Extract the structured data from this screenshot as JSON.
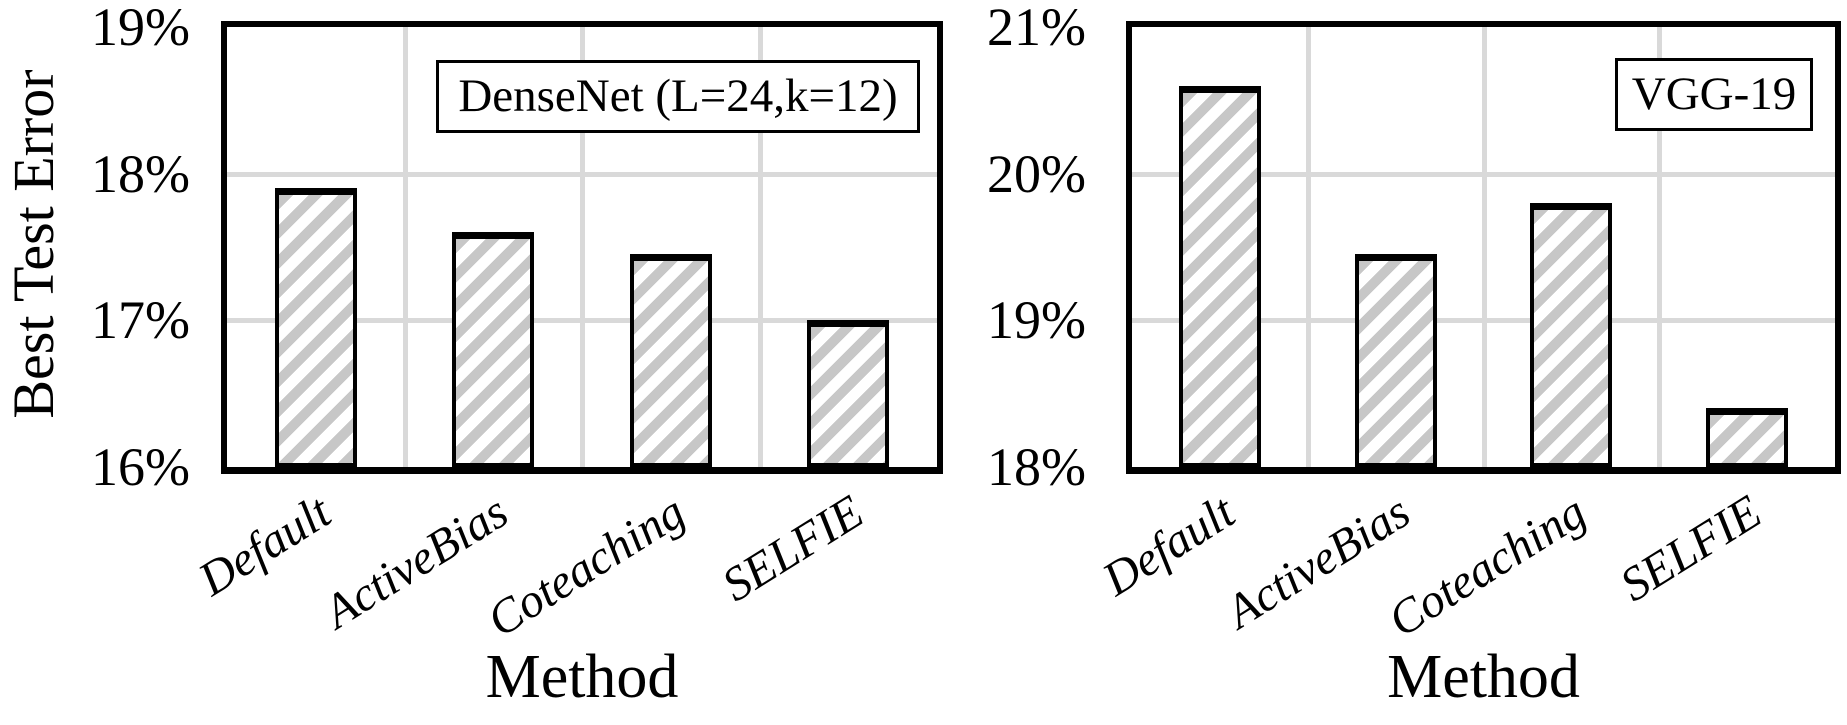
{
  "colors": {
    "background": "#ffffff",
    "grid": "#d9d9d9",
    "bar_fill": "#ffffff",
    "bar_hatch": "#c7c7c7",
    "bar_border": "#000000",
    "text": "#000000"
  },
  "shared": {
    "ylabel": "Best Test Error",
    "xlabel": "Method",
    "categories": [
      "Default",
      "ActiveBias",
      "Coteaching",
      "SELFIE"
    ]
  },
  "chart_data": [
    {
      "type": "bar",
      "title": "DenseNet (L=24,k=12)",
      "xlabel": "Method",
      "ylabel": "Best Test Error",
      "categories": [
        "Default",
        "ActiveBias",
        "Coteaching",
        "SELFIE"
      ],
      "values": [
        17.9,
        17.6,
        17.45,
        17.0
      ],
      "unit": "%",
      "ylim": [
        16,
        19
      ],
      "yticks": [
        19,
        18,
        17,
        16
      ],
      "ytick_labels": [
        "19%",
        "18%",
        "17%",
        "16%"
      ],
      "grid": true,
      "legend": null,
      "bar_style": "diagonal-hatch"
    },
    {
      "type": "bar",
      "title": "VGG-19",
      "xlabel": "Method",
      "ylabel": "",
      "categories": [
        "Default",
        "ActiveBias",
        "Coteaching",
        "SELFIE"
      ],
      "values": [
        20.6,
        19.45,
        19.8,
        18.4
      ],
      "unit": "%",
      "ylim": [
        18,
        21
      ],
      "yticks": [
        21,
        20,
        19,
        18
      ],
      "ytick_labels": [
        "21%",
        "20%",
        "19%",
        "18%"
      ],
      "grid": true,
      "legend": null,
      "bar_style": "diagonal-hatch"
    }
  ]
}
